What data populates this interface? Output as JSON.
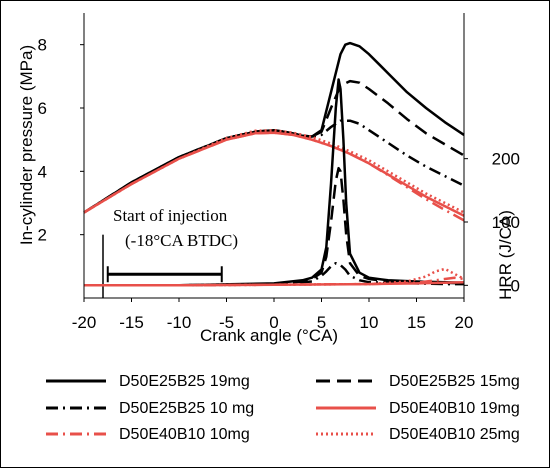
{
  "chart_data": {
    "type": "line",
    "xlabel": "Crank angle (°CA)",
    "ylabel_left": "In-cylinder pressure (MPa)",
    "ylabel_right": "HRR (J/CA)",
    "xlim": [
      -20,
      20
    ],
    "ylim_left": [
      0,
      9
    ],
    "ylim_right": [
      -20,
      430
    ],
    "x_ticks": [
      "-20",
      "-15",
      "-10",
      "-5",
      "0",
      "5",
      "10",
      "15",
      "20"
    ],
    "y_ticks_left": [
      "2",
      "4",
      "6",
      "8"
    ],
    "y_ticks_right": [
      "0",
      "100",
      "200"
    ],
    "annotation": {
      "line1": "Start of injection",
      "line2": "(-18°CA BTDC)",
      "marker_x": -18,
      "bracket_x": [
        -17.5,
        -5.5
      ]
    },
    "legend": [
      {
        "name": "D50E25B25 19mg",
        "color": "#000000",
        "dash": "solid"
      },
      {
        "name": "D50E25B25 15mg",
        "color": "#000000",
        "dash": "long-dash"
      },
      {
        "name": "D50E25B25 10 mg",
        "color": "#000000",
        "dash": "dash-dot"
      },
      {
        "name": "D50E40B10 19mg",
        "color": "#e8504a",
        "dash": "solid"
      },
      {
        "name": "D50E40B10 10mg",
        "color": "#e8504a",
        "dash": "dash-dot"
      },
      {
        "name": "D50E40B10 25mg",
        "color": "#e8504a",
        "dash": "dotted"
      }
    ],
    "series": [
      {
        "name": "D50E25B25 19mg",
        "axis": "left",
        "color": "#000000",
        "dash": "solid",
        "x": [
          -20,
          -15,
          -10,
          -5,
          -2,
          0,
          2,
          3,
          4,
          5,
          6,
          7,
          7.5,
          8,
          9,
          10,
          12,
          14,
          16,
          18,
          20
        ],
        "y": [
          2.7,
          3.65,
          4.45,
          5.05,
          5.25,
          5.3,
          5.2,
          5.12,
          5.1,
          5.3,
          6.5,
          7.7,
          8.0,
          8.05,
          7.95,
          7.7,
          7.1,
          6.5,
          6.0,
          5.55,
          5.15
        ]
      },
      {
        "name": "D50E25B25 15mg",
        "axis": "left",
        "color": "#000000",
        "dash": "long-dash",
        "x": [
          -20,
          -15,
          -10,
          -5,
          -2,
          0,
          2,
          3,
          4,
          5,
          6,
          7,
          8,
          9,
          10,
          12,
          14,
          16,
          18,
          20
        ],
        "y": [
          2.7,
          3.65,
          4.45,
          5.05,
          5.25,
          5.3,
          5.2,
          5.12,
          5.1,
          5.25,
          6.0,
          6.7,
          6.85,
          6.8,
          6.6,
          6.15,
          5.65,
          5.2,
          4.85,
          4.5
        ]
      },
      {
        "name": "D50E25B25 10 mg",
        "axis": "left",
        "color": "#000000",
        "dash": "dash-dot",
        "x": [
          -20,
          -15,
          -10,
          -5,
          -2,
          0,
          2,
          3,
          4,
          5,
          6,
          7,
          8,
          9,
          10,
          12,
          14,
          16,
          18,
          20
        ],
        "y": [
          2.7,
          3.65,
          4.45,
          5.05,
          5.25,
          5.3,
          5.2,
          5.12,
          5.1,
          5.15,
          5.4,
          5.6,
          5.6,
          5.5,
          5.3,
          4.9,
          4.5,
          4.15,
          3.85,
          3.55
        ]
      },
      {
        "name": "D50E40B10 19mg",
        "axis": "left",
        "color": "#e8504a",
        "dash": "solid",
        "x": [
          -20,
          -15,
          -10,
          -5,
          -2,
          0,
          2,
          4,
          6,
          8,
          10,
          12,
          14,
          16,
          18,
          20
        ],
        "y": [
          2.7,
          3.6,
          4.4,
          5.0,
          5.2,
          5.22,
          5.15,
          5.0,
          4.8,
          4.55,
          4.25,
          3.9,
          3.55,
          3.2,
          2.9,
          2.6
        ]
      },
      {
        "name": "D50E40B10 10mg",
        "axis": "left",
        "color": "#e8504a",
        "dash": "dash-dot",
        "x": [
          -20,
          -15,
          -10,
          -5,
          -2,
          0,
          2,
          4,
          6,
          8,
          10,
          12,
          14,
          16,
          18,
          20
        ],
        "y": [
          2.7,
          3.6,
          4.4,
          5.0,
          5.2,
          5.22,
          5.15,
          5.0,
          4.8,
          4.55,
          4.25,
          3.88,
          3.5,
          3.12,
          2.78,
          2.45
        ]
      },
      {
        "name": "D50E40B10 25mg",
        "axis": "left",
        "color": "#e8504a",
        "dash": "dotted",
        "x": [
          -20,
          -15,
          -10,
          -5,
          -2,
          0,
          2,
          4,
          6,
          8,
          10,
          12,
          14,
          16,
          18,
          20
        ],
        "y": [
          2.7,
          3.6,
          4.4,
          5.05,
          5.28,
          5.3,
          5.22,
          5.08,
          4.88,
          4.63,
          4.35,
          4.0,
          3.65,
          3.3,
          3.0,
          2.7
        ]
      },
      {
        "name": "D50E25B25 19mg",
        "axis": "right",
        "color": "#000000",
        "dash": "solid",
        "x": [
          -20,
          -10,
          0,
          3,
          4,
          5,
          5.5,
          6,
          6.5,
          6.8,
          7,
          7.3,
          7.6,
          8,
          9,
          10,
          12,
          15,
          18,
          20
        ],
        "y": [
          0,
          0,
          3,
          8,
          12,
          25,
          60,
          160,
          280,
          325,
          310,
          230,
          130,
          50,
          20,
          12,
          8,
          6,
          5,
          4
        ]
      },
      {
        "name": "D50E25B25 15mg",
        "axis": "right",
        "color": "#000000",
        "dash": "long-dash",
        "x": [
          -20,
          -10,
          0,
          3,
          4,
          5,
          5.5,
          6,
          6.5,
          6.8,
          7,
          7.3,
          7.6,
          8,
          9,
          10,
          12,
          15,
          18,
          20
        ],
        "y": [
          0,
          0,
          2,
          6,
          10,
          20,
          45,
          100,
          165,
          185,
          180,
          135,
          80,
          35,
          15,
          10,
          6,
          5,
          4,
          3
        ]
      },
      {
        "name": "D50E25B25 10 mg",
        "axis": "right",
        "color": "#000000",
        "dash": "dash-dot",
        "x": [
          -20,
          -10,
          0,
          4,
          5,
          5.5,
          6,
          6.5,
          7,
          7.5,
          8,
          9,
          10,
          12,
          15,
          18,
          20
        ],
        "y": [
          0,
          0,
          2,
          6,
          15,
          22,
          30,
          35,
          32,
          25,
          15,
          8,
          5,
          4,
          3,
          2,
          2
        ]
      },
      {
        "name": "D50E40B10 19mg",
        "axis": "right",
        "color": "#e8504a",
        "dash": "solid",
        "x": [
          -20,
          -10,
          0,
          10,
          15,
          18,
          20
        ],
        "y": [
          0,
          0,
          1,
          2,
          3,
          4,
          5
        ]
      },
      {
        "name": "D50E40B10 10mg",
        "axis": "right",
        "color": "#e8504a",
        "dash": "dash-dot",
        "x": [
          -20,
          -10,
          0,
          10,
          15,
          17,
          19,
          20
        ],
        "y": [
          0,
          0,
          1,
          2,
          4,
          8,
          12,
          10
        ]
      },
      {
        "name": "D50E40B10 25mg",
        "axis": "right",
        "color": "#e8504a",
        "dash": "dotted",
        "x": [
          -20,
          -10,
          0,
          10,
          14,
          16,
          17,
          18,
          19,
          20
        ],
        "y": [
          0,
          0,
          1,
          2,
          6,
          14,
          22,
          26,
          18,
          10
        ]
      }
    ]
  }
}
